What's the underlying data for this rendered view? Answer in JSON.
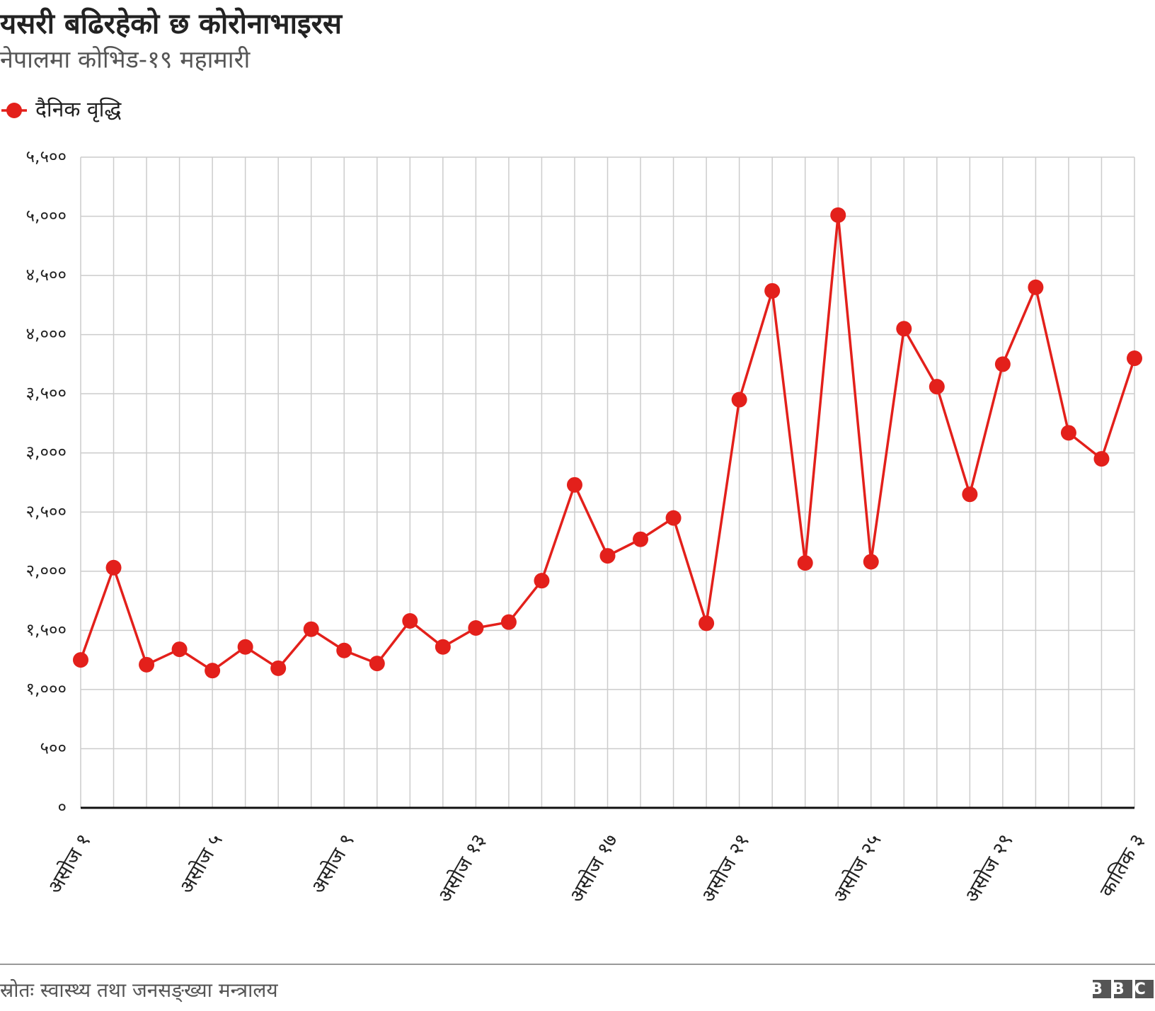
{
  "chart_data": {
    "type": "line",
    "title": "यसरी बढिरहेको छ कोरोनाभाइरस",
    "subtitle": "नेपालमा कोभिड-१९ महामारी",
    "source": "स्रोतः स्वास्थ्य तथा जनसङ्ख्या मन्त्रालय",
    "logo": "BBC",
    "categories": [
      "असोज १",
      null,
      null,
      null,
      "असोज ५",
      null,
      null,
      null,
      "असोज ९",
      null,
      null,
      null,
      "असोज १३",
      null,
      null,
      null,
      "असोज १७",
      null,
      null,
      null,
      "असोज २१",
      null,
      null,
      null,
      "असोज २५",
      null,
      null,
      null,
      "असोज २९",
      null,
      null,
      null,
      "कातिक ३"
    ],
    "series": [
      {
        "name": "दैनिक वृद्धि",
        "color": "#e3201b",
        "values": [
          1250,
          2030,
          1210,
          1340,
          1160,
          1360,
          1180,
          1510,
          1330,
          1220,
          1580,
          1360,
          1520,
          1570,
          1920,
          2730,
          2130,
          2270,
          2450,
          1560,
          3450,
          4370,
          2070,
          5010,
          2080,
          4050,
          3560,
          2650,
          3750,
          4400,
          3170,
          2950,
          3800
        ]
      }
    ],
    "ylim": [
      0,
      5500
    ],
    "yticks": [
      {
        "value": 0,
        "label": "०"
      },
      {
        "value": 500,
        "label": "५००"
      },
      {
        "value": 1000,
        "label": "१,०००"
      },
      {
        "value": 1500,
        "label": "१,५००"
      },
      {
        "value": 2000,
        "label": "२,०००"
      },
      {
        "value": 2500,
        "label": "२,५००"
      },
      {
        "value": 3000,
        "label": "३,०००"
      },
      {
        "value": 3500,
        "label": "३,५००"
      },
      {
        "value": 4000,
        "label": "४,०००"
      },
      {
        "value": 4500,
        "label": "४,५००"
      },
      {
        "value": 5000,
        "label": "५,०००"
      },
      {
        "value": 5500,
        "label": "५,५००"
      }
    ],
    "grid": true
  }
}
